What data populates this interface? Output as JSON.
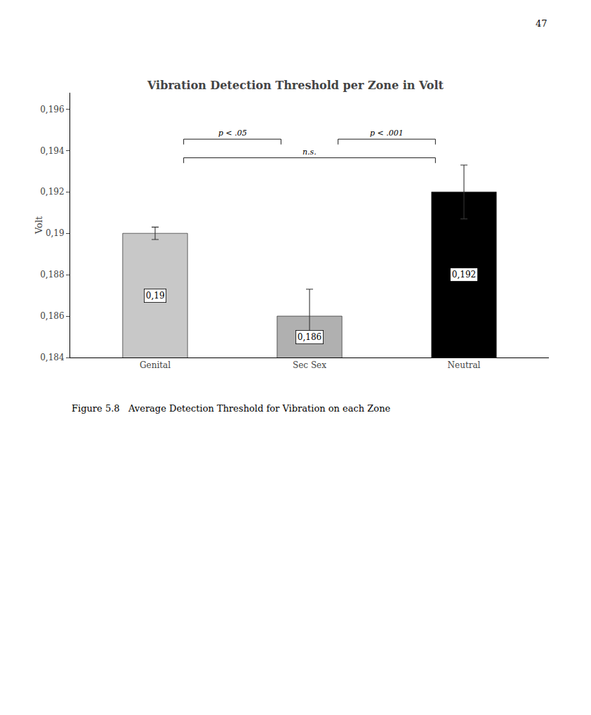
{
  "chart_data": {
    "type": "bar",
    "title": "Vibration Detection Threshold per Zone in Volt",
    "categories": [
      "Genital",
      "Sec Sex",
      "Neutral"
    ],
    "values": [
      0.19,
      0.186,
      0.192
    ],
    "errors": [
      0.0003,
      0.0013,
      0.0013
    ],
    "data_labels": true,
    "value_labels": [
      "0,19",
      "0,186",
      "0,192"
    ],
    "colors": [
      "#c8c8c8",
      "#b0b0b0",
      "#000000"
    ],
    "ylabel": "Volt",
    "ylim": [
      0.184,
      0.1968
    ],
    "yticks": [
      {
        "value": 0.184,
        "label": "0,184"
      },
      {
        "value": 0.186,
        "label": "0,186"
      },
      {
        "value": 0.188,
        "label": "0,188"
      },
      {
        "value": 0.19,
        "label": "0,19"
      },
      {
        "value": 0.192,
        "label": "0,192"
      },
      {
        "value": 0.194,
        "label": "0,194"
      },
      {
        "value": 0.196,
        "label": "0,196"
      }
    ],
    "grid": false,
    "annotations": [
      {
        "text": "p < .05",
        "x": [
          "Genital",
          "Sec Sex"
        ],
        "y": 0.19455
      },
      {
        "text": "p < .001",
        "x": [
          "Sec Sex",
          "Neutral"
        ],
        "y": 0.19455
      },
      {
        "text": "n.s.",
        "x": [
          "Genital",
          "Neutral"
        ],
        "y": 0.19365
      }
    ],
    "caption": "Figure 5.8   Average Detection Threshold for Vibration on each Zone",
    "page_number": "47"
  }
}
